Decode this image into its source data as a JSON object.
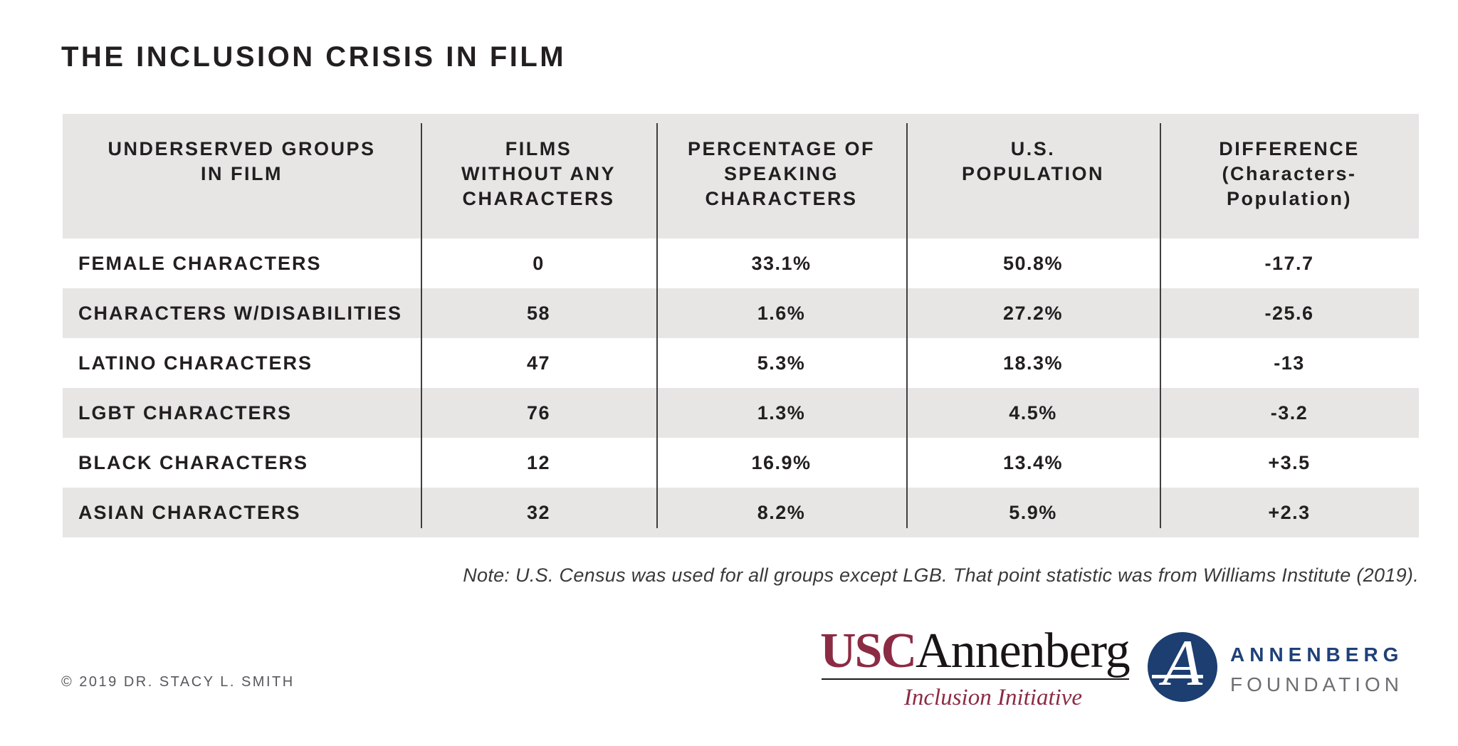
{
  "title": "THE INCLUSION CRISIS IN FILM",
  "table": {
    "headers": {
      "groups": "UNDERSERVED GROUPS\nIN FILM",
      "films_without": "FILMS\nWITHOUT ANY\nCHARACTERS",
      "pct_speaking": "PERCENTAGE OF\nSPEAKING\nCHARACTERS",
      "us_population": "U.S.\nPOPULATION",
      "difference": "DIFFERENCE\n(Characters-\nPopulation)"
    },
    "rows": [
      {
        "group": "FEMALE CHARACTERS",
        "films_without": "0",
        "pct_speaking": "33.1%",
        "us_population": "50.8%",
        "difference": "-17.7"
      },
      {
        "group": "CHARACTERS W/DISABILITIES",
        "films_without": "58",
        "pct_speaking": "1.6%",
        "us_population": "27.2%",
        "difference": "-25.6"
      },
      {
        "group": "LATINO CHARACTERS",
        "films_without": "47",
        "pct_speaking": "5.3%",
        "us_population": "18.3%",
        "difference": "-13"
      },
      {
        "group": "LGBT CHARACTERS",
        "films_without": "76",
        "pct_speaking": "1.3%",
        "us_population": "4.5%",
        "difference": "-3.2"
      },
      {
        "group": "BLACK CHARACTERS",
        "films_without": "12",
        "pct_speaking": "16.9%",
        "us_population": "13.4%",
        "difference": "+3.5"
      },
      {
        "group": "ASIAN CHARACTERS",
        "films_without": "32",
        "pct_speaking": "8.2%",
        "us_population": "5.9%",
        "difference": "+2.3"
      }
    ]
  },
  "note": "Note: U.S. Census was used for all groups except LGB. That point statistic was from Williams Institute (2019).",
  "footer": {
    "copyright": "© 2019 DR. STACY L. SMITH",
    "usc_logo": {
      "usc": "USC",
      "annenberg": "Annenberg",
      "subtitle": "Inclusion Initiative"
    },
    "foundation_logo": {
      "monogram": "A",
      "line1": "ANNENBERG",
      "line2": "FOUNDATION"
    }
  },
  "colors": {
    "table_gray": "#e7e6e5",
    "row_white": "#ffffff",
    "text_dark": "#231f20",
    "divider_gray": "#3f3f3f",
    "usc_maroon": "#8c2b44",
    "foundation_navy": "#1c3e70",
    "foundation_gray": "#6d6e71",
    "copyright_gray": "#57585c"
  },
  "chart_data": {
    "type": "table",
    "title": "THE INCLUSION CRISIS IN FILM",
    "columns": [
      "UNDERSERVED GROUPS IN FILM",
      "FILMS WITHOUT ANY CHARACTERS",
      "PERCENTAGE OF SPEAKING CHARACTERS",
      "U.S. POPULATION",
      "DIFFERENCE (Characters-Population)"
    ],
    "rows": [
      [
        "FEMALE CHARACTERS",
        0,
        "33.1%",
        "50.8%",
        -17.7
      ],
      [
        "CHARACTERS W/DISABILITIES",
        58,
        "1.6%",
        "27.2%",
        -25.6
      ],
      [
        "LATINO CHARACTERS",
        47,
        "5.3%",
        "18.3%",
        -13
      ],
      [
        "LGBT CHARACTERS",
        76,
        "1.3%",
        "4.5%",
        -3.2
      ],
      [
        "BLACK CHARACTERS",
        12,
        "16.9%",
        "13.4%",
        3.5
      ],
      [
        "ASIAN CHARACTERS",
        32,
        "8.2%",
        "5.9%",
        2.3
      ]
    ],
    "note": "Note: U.S. Census was used for all groups except LGB. That point statistic was from Williams Institute (2019).",
    "source": "© 2019 DR. STACY L. SMITH"
  }
}
